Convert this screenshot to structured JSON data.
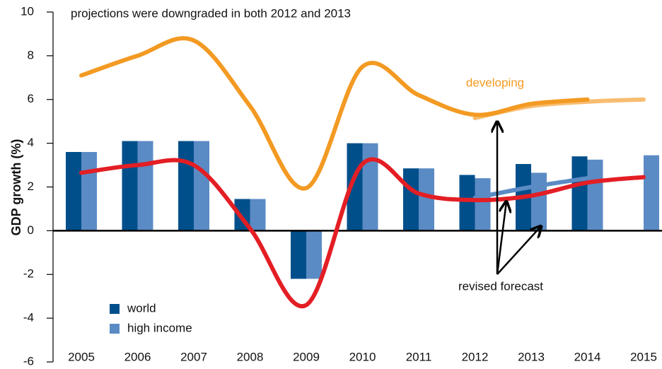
{
  "chart_data": {
    "type": "bar",
    "annotation": "projections were downgraded in both 2012 and 2013",
    "arrow_label": "revised forecast",
    "y_label": "GDP growth (%)",
    "categories": [
      "2005",
      "2006",
      "2007",
      "2008",
      "2009",
      "2010",
      "2011",
      "2012",
      "2013",
      "2014",
      "2015"
    ],
    "series": [
      {
        "name": "world",
        "type": "bar",
        "color": "#004f8b",
        "values": [
          3.6,
          4.1,
          4.1,
          1.45,
          -2.2,
          4.0,
          2.85,
          2.55,
          3.05,
          3.4,
          null
        ]
      },
      {
        "name": "high income",
        "type": "bar",
        "color": "#5b8bc4",
        "values": [
          3.6,
          4.1,
          4.1,
          1.45,
          -2.2,
          4.0,
          2.85,
          2.4,
          2.65,
          3.25,
          3.45
        ]
      },
      {
        "type": "line",
        "color": "#f8bd72",
        "values": [
          null,
          null,
          null,
          null,
          null,
          null,
          null,
          5.15,
          5.7,
          5.9,
          6.0
        ]
      },
      {
        "name": "developing",
        "type": "line",
        "color": "#f39a23",
        "values": [
          7.1,
          8.0,
          8.7,
          5.7,
          1.95,
          7.5,
          6.2,
          5.3,
          5.8,
          6.0,
          null
        ]
      },
      {
        "type": "line",
        "color": "#5b8bc4",
        "values": [
          null,
          null,
          null,
          null,
          null,
          null,
          null,
          1.5,
          2.0,
          2.4,
          null
        ]
      },
      {
        "type": "line",
        "color": "#e31e24",
        "values": [
          2.65,
          3.0,
          3.0,
          0.1,
          -3.4,
          3.05,
          1.7,
          1.4,
          1.6,
          2.2,
          2.45
        ]
      }
    ],
    "ylim": [
      -6,
      10
    ],
    "yticks": [
      -6,
      -4,
      -2,
      0,
      2,
      4,
      6,
      8,
      10
    ],
    "legend": "lower-left"
  }
}
